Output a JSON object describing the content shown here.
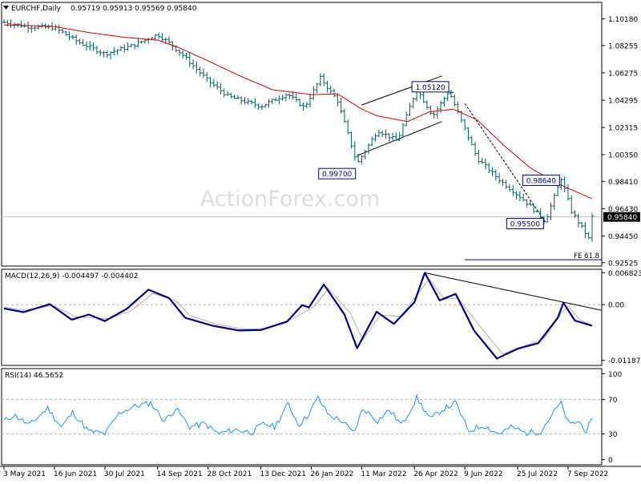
{
  "chart_data": [
    {
      "type": "candlestick",
      "title": "EURCHF,Daily",
      "ohlc_readout": "0.95719 0.95913 0.95569 0.95840",
      "watermark": "ActionForex.com",
      "y_ticks": [
        "1.10180",
        "1.08255",
        "1.06275",
        "1.04295",
        "1.02315",
        "1.00350",
        "0.98410",
        "0.96430",
        "0.94450",
        "0.92525"
      ],
      "y_tick_values": [
        1.1018,
        1.08255,
        1.06275,
        1.04295,
        1.02315,
        1.0035,
        0.9841,
        0.9643,
        0.9445,
        0.92525
      ],
      "ylim": [
        0.9228,
        1.1138
      ],
      "current_price_label": "0.95840",
      "current_price": 0.9584,
      "close_path": [
        [
          "3 May 2021",
          1.0995
        ],
        [
          "24 May 2021",
          1.0962
        ],
        [
          "16 Jun 2021",
          1.0955
        ],
        [
          "7 Jul 2021",
          1.085
        ],
        [
          "30 Jul 2021",
          1.0765
        ],
        [
          "23 Aug 2021",
          1.0825
        ],
        [
          "14 Sep 2021",
          1.0905
        ],
        [
          "24 Sep 2021",
          1.0845
        ],
        [
          "6 Oct 2021",
          1.0755
        ],
        [
          "28 Oct 2021",
          1.057
        ],
        [
          "15 Nov 2021",
          1.0455
        ],
        [
          "13 Dec 2021",
          1.0385
        ],
        [
          "5 Jan 2022",
          1.0475
        ],
        [
          "20 Jan 2022",
          1.0375
        ],
        [
          "3 Feb 2022",
          1.059
        ],
        [
          "18 Feb 2022",
          1.0425
        ],
        [
          "7 Mar 2022",
          0.997
        ],
        [
          "25 Mar 2022",
          1.021
        ],
        [
          "11 Apr 2022",
          1.0135
        ],
        [
          "28 Apr 2022",
          1.0512
        ],
        [
          "12 May 2022",
          1.0315
        ],
        [
          "26 May 2022",
          1.0495
        ],
        [
          "20 Jun 2022",
          1.0005
        ],
        [
          "10 Jul 2022",
          0.9845
        ],
        [
          "1 Aug 2022",
          0.9695
        ],
        [
          "18 Aug 2022",
          0.955
        ],
        [
          "1 Sep 2022",
          0.9864
        ],
        [
          "10 Sep 2022",
          0.9625
        ],
        [
          "26 Sep 2022",
          0.9415
        ],
        [
          "28 Sep 2022",
          0.9584
        ]
      ],
      "ma_path": [
        [
          "3 May 2021",
          1.0975
        ],
        [
          "14 Jun 2021",
          1.0965
        ],
        [
          "16 Jul 2021",
          1.092
        ],
        [
          "16 Aug 2021",
          1.0885
        ],
        [
          "14 Sep 2021",
          1.0865
        ],
        [
          "1 Oct 2021",
          1.0815
        ],
        [
          "28 Oct 2021",
          1.0715
        ],
        [
          "25 Nov 2021",
          1.0605
        ],
        [
          "23 Dec 2021",
          1.0505
        ],
        [
          "26 Jan 2022",
          1.047
        ],
        [
          "18 Feb 2022",
          1.0475
        ],
        [
          "11 Mar 2022",
          1.0365
        ],
        [
          "25 Mar 2022",
          1.0315
        ],
        [
          "20 Apr 2022",
          1.0275
        ],
        [
          "9 May 2022",
          1.0345
        ],
        [
          "30 May 2022",
          1.0365
        ],
        [
          "20 Jun 2022",
          1.0285
        ],
        [
          "14 Jul 2022",
          1.0095
        ],
        [
          "5 Aug 2022",
          0.994
        ],
        [
          "29 Aug 2022",
          0.9825
        ],
        [
          "28 Sep 2022",
          0.9715
        ]
      ],
      "annotations": [
        {
          "label": "0.99700",
          "date": "7 Mar 2022",
          "price": 0.997
        },
        {
          "label": "1.05120",
          "date": "28 Apr 2022",
          "price": 1.0512
        },
        {
          "label": "0.98640",
          "date": "1 Sep 2022",
          "price": 0.9864
        },
        {
          "label": "0.95500",
          "date": "18 Aug 2022",
          "price": 0.955
        }
      ],
      "fe_label": "FE 61.8",
      "fe_price": 0.9274
    },
    {
      "type": "line",
      "title": "MACD(12,26,9) -0.004497 -0.004402",
      "y_ticks": [
        "0.006823",
        "0.00",
        "-0.011874"
      ],
      "y_tick_values": [
        0.006823,
        0.0,
        -0.011874
      ],
      "ylim": [
        -0.01295,
        0.00755
      ],
      "series": [
        {
          "color": "#000080",
          "values": [
            [
              "3 May 2021",
              -0.0008
            ],
            [
              "20 May 2021",
              -0.0016
            ],
            [
              "12 Jun 2021",
              0.0001
            ],
            [
              "1 Jul 2021",
              -0.0032
            ],
            [
              "16 Jul 2021",
              -0.0021
            ],
            [
              "30 Jul 2021",
              -0.0035
            ],
            [
              "18 Aug 2021",
              -0.0009
            ],
            [
              "6 Sep 2021",
              0.0032
            ],
            [
              "24 Sep 2021",
              0.0014
            ],
            [
              "8 Oct 2021",
              -0.0028
            ],
            [
              "1 Nov 2021",
              -0.0045
            ],
            [
              "24 Nov 2021",
              -0.0055
            ],
            [
              "13 Dec 2021",
              -0.0054
            ],
            [
              "5 Jan 2022",
              -0.0036
            ],
            [
              "18 Jan 2022",
              -0.0001
            ],
            [
              "24 Jan 2022",
              -0.0006
            ],
            [
              "6 Feb 2022",
              0.0043
            ],
            [
              "24 Feb 2022",
              -0.0021
            ],
            [
              "7 Mar 2022",
              -0.0093
            ],
            [
              "24 Mar 2022",
              -0.0015
            ],
            [
              "8 Apr 2022",
              -0.0041
            ],
            [
              "26 Apr 2022",
              0.0005
            ],
            [
              "5 May 2022",
              0.0068
            ],
            [
              "18 May 2022",
              0.0009
            ],
            [
              "1 Jun 2022",
              0.0023
            ],
            [
              "17 Jun 2022",
              -0.0055
            ],
            [
              "7 Jul 2022",
              -0.0115
            ],
            [
              "25 Jul 2022",
              -0.0094
            ],
            [
              "12 Aug 2022",
              -0.0082
            ],
            [
              "29 Aug 2022",
              -0.0028
            ],
            [
              "3 Sep 2022",
              0.0004
            ],
            [
              "13 Sep 2022",
              -0.0034
            ],
            [
              "28 Sep 2022",
              -0.0045
            ]
          ]
        },
        {
          "color": "#b0b0b0",
          "values": [
            [
              "3 May 2021",
              -0.0005
            ],
            [
              "20 May 2021",
              -0.0012
            ],
            [
              "15 Jun 2021",
              -0.0002
            ],
            [
              "5 Jul 2021",
              -0.0026
            ],
            [
              "2 Aug 2021",
              -0.003
            ],
            [
              "22 Aug 2021",
              -0.0013
            ],
            [
              "10 Sep 2021",
              0.0024
            ],
            [
              "30 Sep 2021",
              0.0008
            ],
            [
              "12 Oct 2021",
              -0.0023
            ],
            [
              "5 Nov 2021",
              -0.0042
            ],
            [
              "28 Nov 2021",
              -0.0052
            ],
            [
              "16 Dec 2021",
              -0.0051
            ],
            [
              "10 Jan 2022",
              -0.003
            ],
            [
              "28 Jan 2022",
              -0.0005
            ],
            [
              "10 Feb 2022",
              0.0034
            ],
            [
              "1 Mar 2022",
              -0.0018
            ],
            [
              "12 Mar 2022",
              -0.0075
            ],
            [
              "27 Mar 2022",
              -0.0022
            ],
            [
              "14 Apr 2022",
              -0.0025
            ],
            [
              "9 May 2022",
              0.0055
            ],
            [
              "22 May 2022",
              0.0012
            ],
            [
              "3 Jun 2022",
              0.0014
            ],
            [
              "22 Jun 2022",
              -0.0046
            ],
            [
              "12 Jul 2022",
              -0.0105
            ],
            [
              "30 Jul 2022",
              -0.0089
            ],
            [
              "17 Aug 2022",
              -0.0072
            ],
            [
              "1 Sep 2022",
              -0.0019
            ],
            [
              "7 Sep 2022",
              -0.0003
            ],
            [
              "17 Sep 2022",
              -0.0032
            ],
            [
              "28 Sep 2022",
              -0.0044
            ]
          ]
        }
      ],
      "trendline": [
        [
          "5 May 2022",
          0.0068
        ],
        [
          "28 Sep 2022",
          -0.0012
        ]
      ]
    },
    {
      "type": "line",
      "title": "RSI(14) 46.5652",
      "y_ticks": [
        "100",
        "70",
        "30",
        "0"
      ],
      "y_tick_values": [
        100,
        70,
        30,
        0
      ],
      "levels": [
        70,
        30
      ],
      "ylim": [
        -6,
        106
      ],
      "series": [
        {
          "color": "#1e90ff",
          "values": [
            [
              "3 May 2021",
              45
            ],
            [
              "12 May 2021",
              52
            ],
            [
              "25 May 2021",
              40
            ],
            [
              "10 Jun 2021",
              60
            ],
            [
              "22 Jun 2021",
              38
            ],
            [
              "2 Jul 2021",
              55
            ],
            [
              "16 Jul 2021",
              33
            ],
            [
              "30 Jul 2021",
              30
            ],
            [
              "12 Aug 2021",
              55
            ],
            [
              "25 Aug 2021",
              62
            ],
            [
              "8 Sep 2021",
              66
            ],
            [
              "20 Sep 2021",
              45
            ],
            [
              "30 Sep 2021",
              60
            ],
            [
              "12 Oct 2021",
              38
            ],
            [
              "25 Oct 2021",
              42
            ],
            [
              "6 Nov 2021",
              30
            ],
            [
              "20 Nov 2021",
              35
            ],
            [
              "5 Dec 2021",
              32
            ],
            [
              "16 Dec 2021",
              42
            ],
            [
              "25 Dec 2021",
              38
            ],
            [
              "6 Jan 2022",
              65
            ],
            [
              "15 Jan 2022",
              40
            ],
            [
              "22 Jan 2022",
              50
            ],
            [
              "1 Feb 2022",
              72
            ],
            [
              "10 Feb 2022",
              52
            ],
            [
              "22 Feb 2022",
              45
            ],
            [
              "4 Mar 2022",
              30
            ],
            [
              "12 Mar 2022",
              60
            ],
            [
              "25 Mar 2022",
              45
            ],
            [
              "4 Apr 2022",
              58
            ],
            [
              "15 Apr 2022",
              40
            ],
            [
              "28 Apr 2022",
              72
            ],
            [
              "10 May 2022",
              47
            ],
            [
              "20 May 2022",
              58
            ],
            [
              "1 Jun 2022",
              66
            ],
            [
              "12 Jun 2022",
              33
            ],
            [
              "25 Jun 2022",
              40
            ],
            [
              "8 Jul 2022",
              30
            ],
            [
              "20 Jul 2022",
              38
            ],
            [
              "1 Aug 2022",
              31
            ],
            [
              "14 Aug 2022",
              33
            ],
            [
              "28 Aug 2022",
              60
            ],
            [
              "1 Sep 2022",
              65
            ],
            [
              "8 Sep 2022",
              40
            ],
            [
              "16 Sep 2022",
              45
            ],
            [
              "23 Sep 2022",
              33
            ],
            [
              "28 Sep 2022",
              46.5652
            ]
          ]
        }
      ]
    }
  ],
  "x_axis": {
    "labels": [
      "3 May 2021",
      "16 Jun 2021",
      "30 Jul 2021",
      "14 Sep 2021",
      "28 Oct 2021",
      "13 Dec 2021",
      "26 Jan 2022",
      "11 Mar 2022",
      "26 Apr 2022",
      "9 Jun 2022",
      "25 Jul 2022",
      "7 Sep 2022"
    ],
    "range": [
      "3 May 2021",
      "28 Sep 2022"
    ]
  },
  "colors": {
    "candle": "#006060",
    "ma": "#d40000",
    "annotation_box": "#000080",
    "current_price_bg": "#000000",
    "grid_dash": "#b4b4b4",
    "axis": "#000000",
    "watermark": "#dcdcdc",
    "background": "#ffffff"
  }
}
